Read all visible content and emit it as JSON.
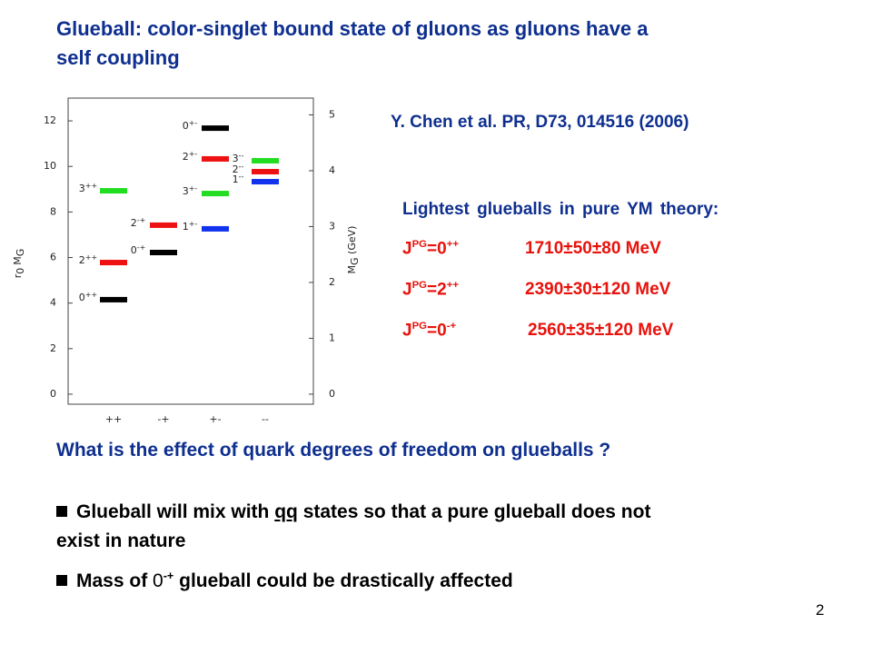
{
  "title_lines": [
    "Glueball: color-singlet bound state of gluons as gluons have a",
    "self coupling"
  ],
  "reference": "Y. Chen et al.  PR, D73, 014516 (2006)",
  "lightest_heading": "Lightest glueballs in pure YM theory:",
  "lightest_rows": [
    {
      "j": "J",
      "j_sup": "PG",
      "eq": "=0",
      "eq_sup": "++",
      "mass": "1710±50±80 MeV"
    },
    {
      "j": "J",
      "j_sup": "PG",
      "eq": "=2",
      "eq_sup": "++",
      "mass": "2390±30±120 MeV"
    },
    {
      "j": "J",
      "j_sup": "PG",
      "eq": "=0",
      "eq_sup": "-+",
      "mass": "2560±35±120 MeV"
    }
  ],
  "question": "What is the effect of quark degrees of freedom on glueballs ?",
  "bullets": [
    {
      "pre": "Glueball will mix with ",
      "qq": "qq",
      "post": " states so that a pure glueball does not",
      "cont": "exist in nature"
    },
    {
      "pre": "Mass of ",
      "state": "0",
      "state_sup": "-+",
      "post": " glueball could be drastically affected"
    }
  ],
  "page_number": "2",
  "chart_data": {
    "type": "level",
    "ylabel": {
      "r": "r",
      "r_sub": "0",
      "m": "M",
      "m_sub": "G"
    },
    "y2label": {
      "m": "M",
      "m_sub": "G",
      "unit": " (GeV)"
    },
    "ylim": [
      -0.44,
      13
    ],
    "yticks": [
      0,
      2,
      4,
      6,
      8,
      10,
      12
    ],
    "y2lim": [
      -0.18,
      5.3
    ],
    "y2ticks": [
      0,
      1,
      2,
      3,
      4,
      5
    ],
    "groups": [
      {
        "category": "++",
        "levels": [
          {
            "j": "0",
            "color": "#000000",
            "value": 4.15
          },
          {
            "j": "2",
            "color": "#ee1111",
            "value": 5.78
          },
          {
            "j": "3",
            "color": "#22dd22",
            "value": 8.93
          }
        ]
      },
      {
        "category": "-+",
        "levels": [
          {
            "j": "0",
            "color": "#000000",
            "value": 6.22
          },
          {
            "j": "2",
            "color": "#ee1111",
            "value": 7.42
          }
        ]
      },
      {
        "category": "+-",
        "levels": [
          {
            "j": "1",
            "color": "#1133ee",
            "value": 7.26
          },
          {
            "j": "3",
            "color": "#22dd22",
            "value": 8.81
          },
          {
            "j": "2",
            "color": "#ee1111",
            "value": 10.33
          },
          {
            "j": "0",
            "color": "#000000",
            "value": 11.68
          }
        ]
      },
      {
        "category": "--",
        "levels": [
          {
            "j": "3",
            "color": "#22dd22",
            "value": 10.25
          },
          {
            "j": "2",
            "color": "#ee1111",
            "value": 9.77
          },
          {
            "j": "1",
            "color": "#1133ee",
            "value": 9.33
          }
        ]
      }
    ]
  }
}
